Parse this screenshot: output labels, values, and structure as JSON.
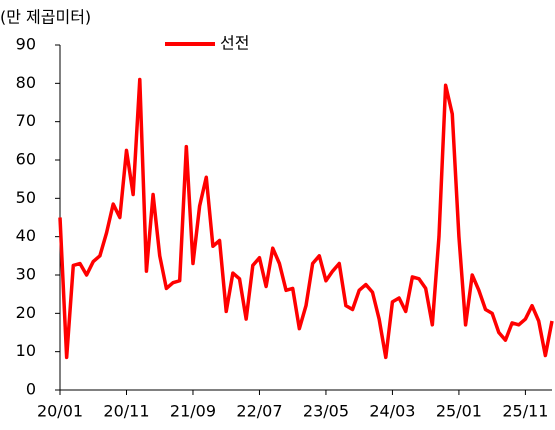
{
  "chart_data": {
    "type": "line",
    "y_label": "(만 제곱미터)",
    "categories": [
      "20/01",
      null,
      null,
      null,
      null,
      null,
      null,
      null,
      null,
      null,
      "20/11",
      null,
      null,
      null,
      null,
      null,
      null,
      null,
      null,
      null,
      "21/09",
      null,
      null,
      null,
      null,
      null,
      null,
      null,
      null,
      null,
      "22/07",
      null,
      null,
      null,
      null,
      null,
      null,
      null,
      null,
      null,
      "23/05",
      null,
      null,
      null,
      null,
      null,
      null,
      null,
      null,
      null,
      "24/03",
      null,
      null,
      null,
      null,
      null,
      null,
      null,
      null,
      null,
      "25/01",
      null,
      null,
      null,
      null,
      null,
      null,
      null,
      null,
      null,
      "25/11",
      null,
      null,
      null,
      null
    ],
    "series": [
      {
        "name": "선전",
        "color": "#ff0000",
        "values": [
          45,
          8.5,
          32.5,
          33,
          30,
          33.5,
          35,
          41,
          48.5,
          45,
          62.5,
          51,
          81,
          31,
          51,
          35,
          26.5,
          28,
          28.5,
          63.5,
          33,
          48,
          55.5,
          37.5,
          39,
          20.5,
          30.5,
          29,
          18.5,
          32.5,
          34.5,
          27,
          37,
          33,
          26,
          26.5,
          16,
          22,
          33,
          35,
          28.5,
          31,
          33,
          22,
          21,
          26,
          27.5,
          25.5,
          18.5,
          8.5,
          23,
          24,
          20.5,
          29.5,
          29,
          26.5,
          17,
          40,
          79.5,
          72,
          40,
          17,
          30,
          26,
          21,
          20,
          15,
          13,
          17.5,
          17,
          18.5,
          22,
          18,
          9,
          18
        ]
      }
    ],
    "ylim": [
      0,
      90
    ],
    "yticks": [
      0,
      10,
      20,
      30,
      40,
      50,
      60,
      70,
      80,
      90
    ],
    "legend": "top"
  }
}
